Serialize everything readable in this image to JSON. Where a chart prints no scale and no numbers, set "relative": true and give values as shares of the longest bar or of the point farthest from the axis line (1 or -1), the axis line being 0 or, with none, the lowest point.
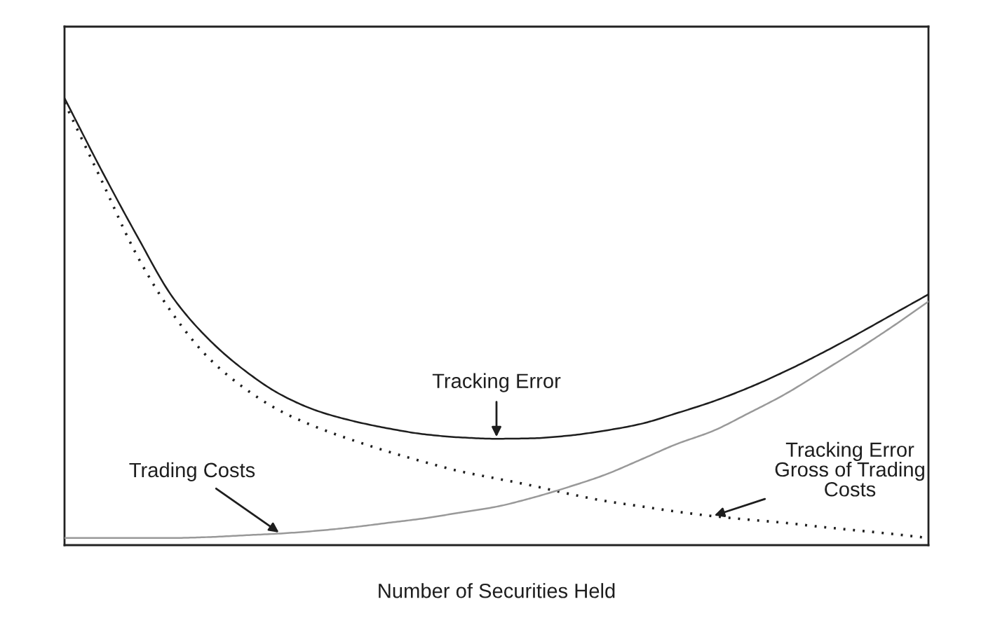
{
  "chart_data": {
    "type": "line",
    "relative": true,
    "xlabel": "Number of Securities Held",
    "categories": [
      null,
      null,
      null,
      null,
      null,
      null,
      null,
      null,
      null,
      null,
      null,
      null,
      null,
      null,
      null,
      null,
      null,
      null,
      null,
      null,
      null,
      null,
      null,
      null,
      null
    ],
    "series": [
      {
        "name": "Tracking Error",
        "color": "#1e1e1e",
        "line_style": "solid",
        "values": [
          1.0,
          0.843,
          0.694,
          0.555,
          0.461,
          0.391,
          0.337,
          0.301,
          0.278,
          0.261,
          0.248,
          0.241,
          0.238,
          0.239,
          0.245,
          0.256,
          0.271,
          0.295,
          0.321,
          0.352,
          0.388,
          0.428,
          0.471,
          0.516,
          0.561
        ]
      },
      {
        "name": "Tracking Error\nGross of Trading\nCosts",
        "color": "#1e1e1e",
        "line_style": "dotted",
        "values": [
          0.99,
          0.821,
          0.65,
          0.518,
          0.419,
          0.351,
          0.3,
          0.264,
          0.235,
          0.209,
          0.186,
          0.165,
          0.149,
          0.133,
          0.115,
          0.099,
          0.087,
          0.075,
          0.065,
          0.057,
          0.05,
          0.041,
          0.033,
          0.025,
          0.016
        ]
      },
      {
        "name": "Trading Costs",
        "color": "#999999",
        "line_style": "solid",
        "values": [
          0.016,
          0.016,
          0.016,
          0.016,
          0.018,
          0.022,
          0.026,
          0.032,
          0.04,
          0.05,
          0.06,
          0.073,
          0.086,
          0.106,
          0.13,
          0.157,
          0.191,
          0.226,
          0.255,
          0.295,
          0.337,
          0.386,
          0.436,
          0.489,
          0.545
        ]
      }
    ]
  }
}
